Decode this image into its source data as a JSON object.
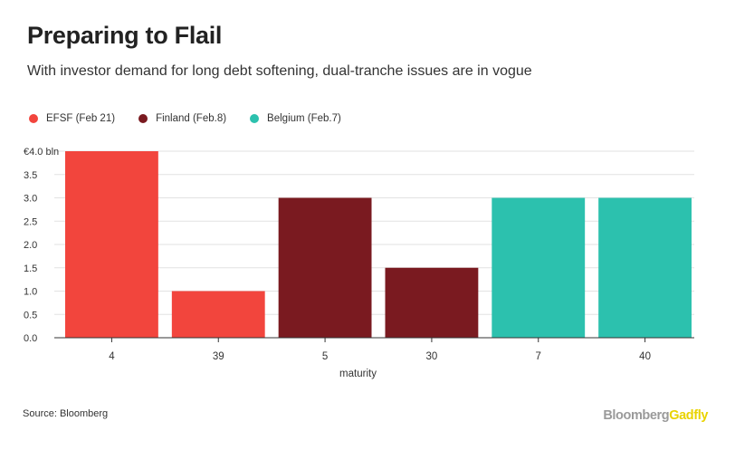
{
  "header": {
    "title": "Preparing to Flail",
    "subtitle": "With investor demand for long debt softening, dual-tranche issues are in vogue"
  },
  "legend": [
    {
      "label": "EFSF (Feb 21)",
      "color": "#f2453d"
    },
    {
      "label": "Finland (Feb.8)",
      "color": "#7a1a20"
    },
    {
      "label": "Belgium (Feb.7)",
      "color": "#2cc1ae"
    }
  ],
  "chart_data": {
    "type": "bar",
    "categories": [
      "4",
      "39",
      "5",
      "30",
      "7",
      "40"
    ],
    "values": [
      4.0,
      1.0,
      3.0,
      1.5,
      3.0,
      3.0
    ],
    "bar_series": [
      "EFSF (Feb 21)",
      "EFSF (Feb 21)",
      "Finland (Feb.8)",
      "Finland (Feb.8)",
      "Belgium (Feb.7)",
      "Belgium (Feb.7)"
    ],
    "bar_colors": [
      "#f2453d",
      "#f2453d",
      "#7a1a20",
      "#7a1a20",
      "#2cc1ae",
      "#2cc1ae"
    ],
    "title": "Preparing to Flail",
    "xlabel": "maturity",
    "ylabel": "",
    "ylim": [
      0,
      4.0
    ],
    "yticks": [
      0.0,
      0.5,
      1.0,
      1.5,
      2.0,
      2.5,
      3.0,
      3.5,
      4.0
    ],
    "ytick_labels": [
      "0.0",
      "0.5",
      "1.0",
      "1.5",
      "2.0",
      "2.5",
      "3.0",
      "3.5",
      "€4.0 bln"
    ],
    "grid": true,
    "legend_position": "top-left"
  },
  "footer": {
    "source": "Source: Bloomberg",
    "brand_part1": "Bloomberg",
    "brand_part2": "Gadfly"
  }
}
